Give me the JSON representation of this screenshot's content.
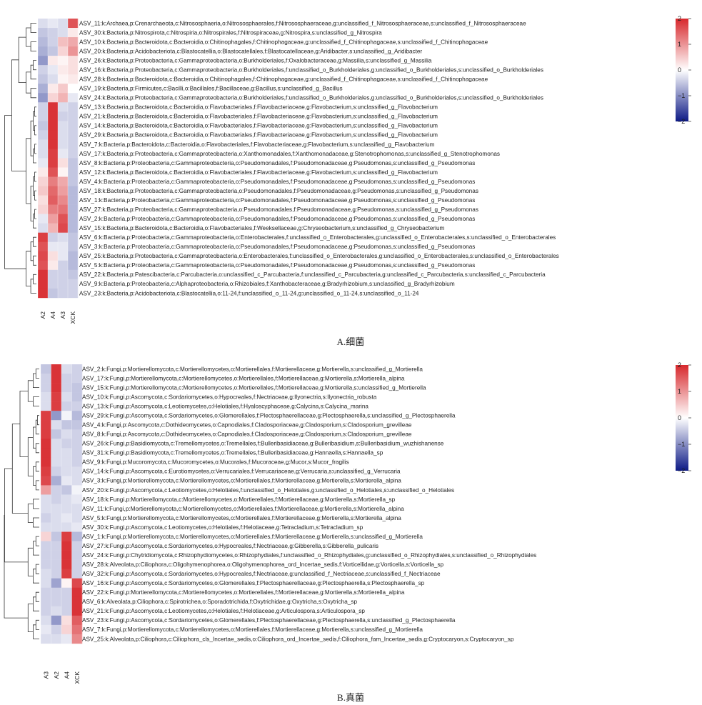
{
  "chart_data": [
    {
      "type": "heatmap",
      "caption": "A.细菌",
      "columns": [
        "A2",
        "A4",
        "A3",
        "XCK"
      ],
      "colorbar": {
        "min": -2,
        "max": 2,
        "ticks": [
          "2",
          "1",
          "0",
          "−1",
          "−2"
        ],
        "colors": {
          "low": "#0d1a86",
          "mid": "#ffffff",
          "high": "#d7282c"
        }
      },
      "rows": [
        {
          "label": "ASV_11:k:Archaea,p:Crenarchaeota,c:Nitrososphaeria,o:Nitrososphaerales,f:Nitrososphaeraceae,g:unclassified_f_Nitrososphaeraceae,s:unclassified_f_Nitrososphaeraceae",
          "values": [
            -0.3,
            -0.2,
            -0.3,
            1.6
          ]
        },
        {
          "label": "ASV_30:k:Bacteria,p:Nitrospirota,c:Nitrospiria,o:Nitrospirales,f:Nitrospiraceae,g:Nitrospira,s:unclassified_g_Nitrospira",
          "values": [
            -0.5,
            -0.4,
            -0.3,
            0.2
          ]
        },
        {
          "label": "ASV_10:k:Bacteria,p:Bacteroidota,c:Bacteroidia,o:Chitinophagales,f:Chitinophagaceae,g:unclassified_f_Chitinophagaceae,s:unclassified_f_Chitinophagaceae",
          "values": [
            -0.6,
            -0.4,
            0.6,
            0.8
          ]
        },
        {
          "label": "ASV_20:k:Bacteria,p:Acidobacteriota,c:Blastocatellia,o:Blastocatellales,f:Blastocatellaceae,g:Aridibacter,s:unclassified_g_Aridibacter",
          "values": [
            -0.7,
            -0.5,
            0.4,
            1.0
          ]
        },
        {
          "label": "ASV_26:k:Bacteria,p:Proteobacteria,c:Gammaproteobacteria,o:Burkholderiales,f:Oxalobacteraceae,g:Massilia,s:unclassified_g_Massilia",
          "values": [
            -0.9,
            0.2,
            0.1,
            0.3
          ]
        },
        {
          "label": "ASV_16:k:Bacteria,p:Proteobacteria,c:Gammaproteobacteria,o:Burkholderiales,f:unclassified_o_Burkholderiales,g:unclassified_o_Burkholderiales,s:unclassified_o_Burkholderiales",
          "values": [
            -0.4,
            -0.2,
            0.2,
            0.3
          ]
        },
        {
          "label": "ASV_28:k:Bacteria,p:Bacteroidota,c:Bacteroidia,o:Chitinophagales,f:Chitinophagaceae,g:unclassified_f_Chitinophagaceae,s:unclassified_f_Chitinophagaceae",
          "values": [
            -0.5,
            -0.3,
            0.1,
            0.2
          ]
        },
        {
          "label": "ASV_19:k:Bacteria,p:Firmicutes,c:Bacilli,o:Bacillales,f:Bacillaceae,g:Bacillus,s:unclassified_g_Bacillus",
          "values": [
            -0.7,
            0.2,
            0.5,
            0.0
          ]
        },
        {
          "label": "ASV_24:k:Bacteria,p:Proteobacteria,c:Gammaproteobacteria,o:Burkholderiales,f:unclassified_o_Burkholderiales,g:unclassified_o_Burkholderiales,s:unclassified_o_Burkholderiales",
          "values": [
            -0.9,
            0.4,
            0.7,
            -0.2
          ]
        },
        {
          "label": "ASV_13:k:Bacteria,p:Bacteroidota,c:Bacteroidia,o:Flavobacteriales,f:Flavobacteriaceae,g:Flavobacterium,s:unclassified_g_Flavobacterium",
          "values": [
            -0.4,
            1.9,
            -0.3,
            -0.4
          ]
        },
        {
          "label": "ASV_21:k:Bacteria,p:Bacteroidota,c:Bacteroidia,o:Flavobacteriales,f:Flavobacteriaceae,g:Flavobacterium,s:unclassified_g_Flavobacterium",
          "values": [
            -0.4,
            1.9,
            -0.4,
            -0.4
          ]
        },
        {
          "label": "ASV_14:k:Bacteria,p:Bacteroidota,c:Bacteroidia,o:Flavobacteriales,f:Flavobacteriaceae,g:Flavobacterium,s:unclassified_g_Flavobacterium",
          "values": [
            -0.5,
            1.9,
            -0.3,
            -0.4
          ]
        },
        {
          "label": "ASV_29:k:Bacteria,p:Bacteroidota,c:Bacteroidia,o:Flavobacteriales,f:Flavobacteriaceae,g:Flavobacterium,s:unclassified_g_Flavobacterium",
          "values": [
            -0.4,
            1.9,
            -0.3,
            -0.4
          ]
        },
        {
          "label": "ASV_7:k:Bacteria,p:Bacteroidota,c:Bacteroidia,o:Flavobacteriales,f:Flavobacteriaceae,g:Flavobacterium,s:unclassified_g_Flavobacterium",
          "values": [
            -0.3,
            1.9,
            -0.3,
            -0.4
          ]
        },
        {
          "label": "ASV_17:k:Bacteria,p:Proteobacteria,c:Gammaproteobacteria,o:Xanthomonadales,f:Xanthomonadaceae,g:Stenotrophomonas,s:unclassified_g_Stenotrophomonas",
          "values": [
            -0.3,
            1.8,
            -0.2,
            -0.4
          ]
        },
        {
          "label": "ASV_8:k:Bacteria,p:Proteobacteria,c:Gammaproteobacteria,o:Pseudomonadales,f:Pseudomonadaceae,g:Pseudomonas,s:unclassified_g_Pseudomonas",
          "values": [
            -0.2,
            1.8,
            0.3,
            -0.5
          ]
        },
        {
          "label": "ASV_12:k:Bacteria,p:Bacteroidota,c:Bacteroidia,o:Flavobacteriales,f:Flavobacteriaceae,g:Flavobacterium,s:unclassified_g_Flavobacterium",
          "values": [
            0.2,
            1.6,
            0.1,
            -0.5
          ]
        },
        {
          "label": "ASV_4:k:Bacteria,p:Proteobacteria,c:Gammaproteobacteria,o:Pseudomonadales,f:Pseudomonadaceae,g:Pseudomonas,s:unclassified_g_Pseudomonas",
          "values": [
            0.4,
            1.2,
            0.8,
            -0.5
          ]
        },
        {
          "label": "ASV_18:k:Bacteria,p:Proteobacteria,c:Gammaproteobacteria,o:Pseudomonadales,f:Pseudomonadaceae,g:Pseudomonas,s:unclassified_g_Pseudomonas",
          "values": [
            0.5,
            1.4,
            0.9,
            -0.6
          ]
        },
        {
          "label": "ASV_1:k:Bacteria,p:Proteobacteria,c:Gammaproteobacteria,o:Pseudomonadales,f:Pseudomonadaceae,g:Pseudomonas,s:unclassified_g_Pseudomonas",
          "values": [
            0.3,
            1.5,
            1.1,
            -0.6
          ]
        },
        {
          "label": "ASV_27:k:Bacteria,p:Proteobacteria,c:Gammaproteobacteria,o:Pseudomonadales,f:Pseudomonadaceae,g:Pseudomonas,s:unclassified_g_Pseudomonas",
          "values": [
            0.4,
            1.2,
            1.3,
            -0.6
          ]
        },
        {
          "label": "ASV_2:k:Bacteria,p:Proteobacteria,c:Gammaproteobacteria,o:Pseudomonadales,f:Pseudomonadaceae,g:Pseudomonas,s:unclassified_g_Pseudomonas",
          "values": [
            -0.2,
            0.9,
            1.6,
            -0.6
          ]
        },
        {
          "label": "ASV_15:k:Bacteria,p:Bacteroidota,c:Bacteroidia,o:Flavobacteriales,f:Weeksellaceae,g:Chryseobacterium,s:unclassified_g_Chryseobacterium",
          "values": [
            -0.3,
            0.7,
            1.7,
            -0.6
          ]
        },
        {
          "label": "ASV_6:k:Bacteria,p:Proteobacteria,c:Gammaproteobacteria,o:Enterobacterales,f:unclassified_o_Enterobacterales,g:unclassified_o_Enterobacterales,s:unclassified_o_Enterobacterales",
          "values": [
            1.8,
            -0.4,
            -0.3,
            -0.5
          ]
        },
        {
          "label": "ASV_3:k:Bacteria,p:Proteobacteria,c:Gammaproteobacteria,o:Pseudomonadales,f:Pseudomonadaceae,g:Pseudomonas,s:unclassified_g_Pseudomonas",
          "values": [
            1.6,
            -0.2,
            -0.2,
            -0.5
          ]
        },
        {
          "label": "ASV_25:k:Bacteria,p:Proteobacteria,c:Gammaproteobacteria,o:Enterobacterales,f:unclassified_o_Enterobacterales,g:unclassified_o_Enterobacterales,s:unclassified_o_Enterobacterales",
          "values": [
            1.7,
            0.3,
            -0.2,
            -0.6
          ]
        },
        {
          "label": "ASV_5:k:Bacteria,p:Proteobacteria,c:Gammaproteobacteria,o:Pseudomonadales,f:Pseudomonadaceae,g:Pseudomonas,s:unclassified_g_Pseudomonas",
          "values": [
            1.6,
            0.2,
            -0.4,
            -0.6
          ]
        },
        {
          "label": "ASV_22:k:Bacteria,p:Patescibacteria,c:Parcubacteria,o:unclassified_c_Parcubacteria,f:unclassified_c_Parcubacteria,g:unclassified_c_Parcubacteria,s:unclassified_c_Parcubacteria",
          "values": [
            1.9,
            -0.4,
            -0.4,
            -0.5
          ]
        },
        {
          "label": "ASV_9:k:Bacteria,p:Proteobacteria,c:Alphaproteobacteria,o:Rhizobiales,f:Xanthobacteraceae,g:Bradyrhizobium,s:unclassified_g_Bradyrhizobium",
          "values": [
            1.9,
            -0.4,
            -0.4,
            -0.4
          ]
        },
        {
          "label": "ASV_23:k:Bacteria,p:Acidobacteriota,c:Blastocatellia,o:11-24,f:unclassified_o_11-24,g:unclassified_o_11-24,s:unclassified_o_11-24",
          "values": [
            1.9,
            -0.5,
            -0.4,
            -0.4
          ]
        }
      ]
    },
    {
      "type": "heatmap",
      "caption": "B.真菌",
      "columns": [
        "A3",
        "A2",
        "A4",
        "XCK"
      ],
      "colorbar": {
        "min": -2,
        "max": 2,
        "ticks": [
          "2",
          "1",
          "0",
          "−1",
          "−2"
        ],
        "colors": {
          "low": "#0d1a86",
          "mid": "#ffffff",
          "high": "#d7282c"
        }
      },
      "rows": [
        {
          "label": "ASV_2:k:Fungi,p:Mortierellomycota,c:Mortierellomycetes,o:Mortierellales,f:Mortierellaceae,g:Mortierella,s:unclassified_g_Mortierella",
          "values": [
            -0.5,
            1.9,
            -0.3,
            -0.4
          ]
        },
        {
          "label": "ASV_17:k:Fungi,p:Mortierellomycota,c:Mortierellomycetes,o:Mortierellales,f:Mortierellaceae,g:Mortierella,s:Mortierella_alpina",
          "values": [
            -0.4,
            1.9,
            -0.4,
            -0.4
          ]
        },
        {
          "label": "ASV_15:k:Fungi,p:Mortierellomycota,c:Mortierellomycetes,o:Mortierellales,f:Mortierellaceae,g:Mortierella,s:unclassified_g_Mortierella",
          "values": [
            -0.4,
            1.9,
            -0.4,
            -0.5
          ]
        },
        {
          "label": "ASV_10:k:Fungi,p:Ascomycota,c:Sordariomycetes,o:Hypocreales,f:Nectriaceae,g:Ilyonectria,s:Ilyonectria_robusta",
          "values": [
            -0.3,
            1.8,
            -0.3,
            -0.5
          ]
        },
        {
          "label": "ASV_13:k:Fungi,p:Ascomycota,c:Leotiomycetes,o:Helotiales,f:Hyaloscyphaceae,g:Calycina,s:Calycina_marina",
          "values": [
            -0.3,
            1.8,
            -0.4,
            -0.4
          ]
        },
        {
          "label": "ASV_29:k:Fungi,p:Ascomycota,c:Sordariomycetes,o:Glomerellales,f:Plectosphaerellaceae,g:Plectosphaerella,s:unclassified_g_Plectosphaerella",
          "values": [
            1.8,
            -0.9,
            -0.1,
            -0.6
          ]
        },
        {
          "label": "ASV_4:k:Fungi,p:Ascomycota,c:Dothideomycetes,o:Capnodiales,f:Cladosporiaceae,g:Cladosporium,s:Cladosporium_grevilleae",
          "values": [
            1.8,
            -0.3,
            -0.5,
            -0.5
          ]
        },
        {
          "label": "ASV_8:k:Fungi,p:Ascomycota,c:Dothideomycetes,o:Capnodiales,f:Cladosporiaceae,g:Cladosporium,s:Cladosporium_grevilleae",
          "values": [
            1.8,
            -0.5,
            -0.3,
            -0.4
          ]
        },
        {
          "label": "ASV_26:k:Fungi,p:Basidiomycota,c:Tremellomycetes,o:Tremellales,f:Bulleribasidiaceae,g:Bulleribasidium,s:Bulleribasidium_wuzhishanense",
          "values": [
            1.9,
            -0.3,
            -0.4,
            -0.4
          ]
        },
        {
          "label": "ASV_31:k:Fungi,p:Basidiomycota,c:Tremellomycetes,o:Tremellales,f:Bulleribasidiaceae,g:Hannaella,s:Hannaella_sp",
          "values": [
            1.9,
            -0.3,
            -0.3,
            -0.4
          ]
        },
        {
          "label": "ASV_9:k:Fungi,p:Mucoromycota,c:Mucoromycetes,o:Mucorales,f:Mucoraceae,g:Mucor,s:Mucor_fragilis",
          "values": [
            1.9,
            -0.3,
            -0.3,
            -0.4
          ]
        },
        {
          "label": "ASV_14:k:Fungi,p:Ascomycota,c:Eurotiomycetes,o:Verrucariales,f:Verrucariaceae,g:Verrucaria,s:unclassified_g_Verrucaria",
          "values": [
            1.8,
            -0.4,
            -0.3,
            -0.3
          ]
        },
        {
          "label": "ASV_3:k:Fungi,p:Mortierellomycota,c:Mortierellomycetes,o:Mortierellales,f:Mortierellaceae,g:Mortierella,s:Mortierella_alpina",
          "values": [
            1.7,
            -0.7,
            -0.2,
            -0.3
          ]
        },
        {
          "label": "ASV_20:k:Fungi,p:Ascomycota,c:Leotiomycetes,o:Helotiales,f:unclassified_o_Helotiales,g:unclassified_o_Helotiales,s:unclassified_o_Helotiales",
          "values": [
            0.9,
            -0.4,
            -0.5,
            -0.1
          ]
        },
        {
          "label": "ASV_18:k:Fungi,p:Mortierellomycota,c:Mortierellomycetes,o:Mortierellales,f:Mortierellaceae,g:Mortierella,s:Mortierella_sp",
          "values": [
            -0.3,
            -0.4,
            -0.3,
            -0.2
          ]
        },
        {
          "label": "ASV_11:k:Fungi,p:Mortierellomycota,c:Mortierellomycetes,o:Mortierellales,f:Mortierellaceae,g:Mortierella,s:Mortierella_alpina",
          "values": [
            -0.3,
            -0.3,
            -0.3,
            -0.3
          ]
        },
        {
          "label": "ASV_5:k:Fungi,p:Mortierellomycota,c:Mortierellomycetes,o:Mortierellales,f:Mortierellaceae,g:Mortierella,s:Mortierella_alpina",
          "values": [
            -0.4,
            -0.3,
            -0.2,
            -0.3
          ]
        },
        {
          "label": "ASV_30:k:Fungi,p:Ascomycota,c:Leotiomycetes,o:Helotiales,f:Helotiaceae,g:Tetracladium,s:Tetracladium_sp",
          "values": [
            -0.3,
            -0.3,
            -0.3,
            -0.2
          ]
        },
        {
          "label": "ASV_1:k:Fungi,p:Mortierellomycota,c:Mortierellomycetes,o:Mortierellales,f:Mortierellaceae,g:Mortierella,s:unclassified_g_Mortierella",
          "values": [
            0.4,
            -0.5,
            1.8,
            -0.6
          ]
        },
        {
          "label": "ASV_27:k:Fungi,p:Ascomycota,c:Sordariomycetes,o:Hypocreales,f:Nectriaceae,g:Gibberella,s:Gibberella_pulicaris",
          "values": [
            -0.4,
            -0.4,
            1.9,
            -0.4
          ]
        },
        {
          "label": "ASV_24:k:Fungi,p:Chytridiomycota,c:Rhizophydiomycetes,o:Rhizophydiales,f:unclassified_o_Rhizophydiales,g:unclassified_o_Rhizophydiales,s:unclassified_o_Rhizophydiales",
          "values": [
            -0.4,
            -0.4,
            1.9,
            -0.4
          ]
        },
        {
          "label": "ASV_28:k:Alveolata,p:Ciliophora,c:Oligohymenophorea,o:Oligohymenophorea_ord_Incertae_sedis,f:Vorticellidae,g:Vorticella,s:Vorticella_sp",
          "values": [
            -0.4,
            -0.4,
            1.9,
            -0.4
          ]
        },
        {
          "label": "ASV_32:k:Fungi,p:Ascomycota,c:Sordariomycetes,o:Hypocreales,f:Nectriaceae,g:unclassified_f_Nectriaceae,s:unclassified_f_Nectriaceae",
          "values": [
            -0.3,
            -0.4,
            1.8,
            -0.4
          ]
        },
        {
          "label": "ASV_16:k:Fungi,p:Ascomycota,c:Sordariomycetes,o:Glomerellales,f:Plectosphaerellaceae,g:Plectosphaerella,s:Plectosphaerella_sp",
          "values": [
            -0.3,
            -0.8,
            0.1,
            1.7
          ]
        },
        {
          "label": "ASV_22:k:Fungi,p:Mortierellomycota,c:Mortierellomycetes,o:Mortierellales,f:Mortierellaceae,g:Mortierella,s:Mortierella_alpina",
          "values": [
            -0.4,
            -0.4,
            -0.4,
            1.9
          ]
        },
        {
          "label": "ASV_6:k:Alveolata,p:Ciliophora,c:Spirotrichea,o:Sporadotrichida,f:Oxytrichidae,g:Oxytricha,s:Oxytricha_sp",
          "values": [
            -0.4,
            -0.4,
            -0.4,
            1.9
          ]
        },
        {
          "label": "ASV_21:k:Fungi,p:Ascomycota,c:Leotiomycetes,o:Helotiales,f:Helotiaceae,g:Articulospora,s:Articulospora_sp",
          "values": [
            -0.4,
            -0.3,
            -0.4,
            1.9
          ]
        },
        {
          "label": "ASV_23:k:Fungi,p:Ascomycota,c:Sordariomycetes,o:Glomerellales,f:Plectosphaerellaceae,g:Plectosphaerella,s:unclassified_g_Plectosphaerella",
          "values": [
            -0.3,
            -0.9,
            0.3,
            1.5
          ]
        },
        {
          "label": "ASV_7:k:Fungi,p:Mortierellomycota,c:Mortierellomycetes,o:Mortierellales,f:Mortierellaceae,g:Mortierella,s:unclassified_g_Mortierella",
          "values": [
            -0.2,
            -0.4,
            0.4,
            1.3
          ]
        },
        {
          "label": "ASV_25:k:Alveolata,p:Ciliophora,c:Ciliophora_cls_Incertae_sedis,o:Ciliophora_ord_Incertae_sedis,f:Ciliophora_fam_Incertae_sedis,g:Cryptocaryon,s:Cryptocaryon_sp",
          "values": [
            -0.3,
            -0.3,
            -0.2,
            1.1
          ]
        }
      ]
    }
  ]
}
